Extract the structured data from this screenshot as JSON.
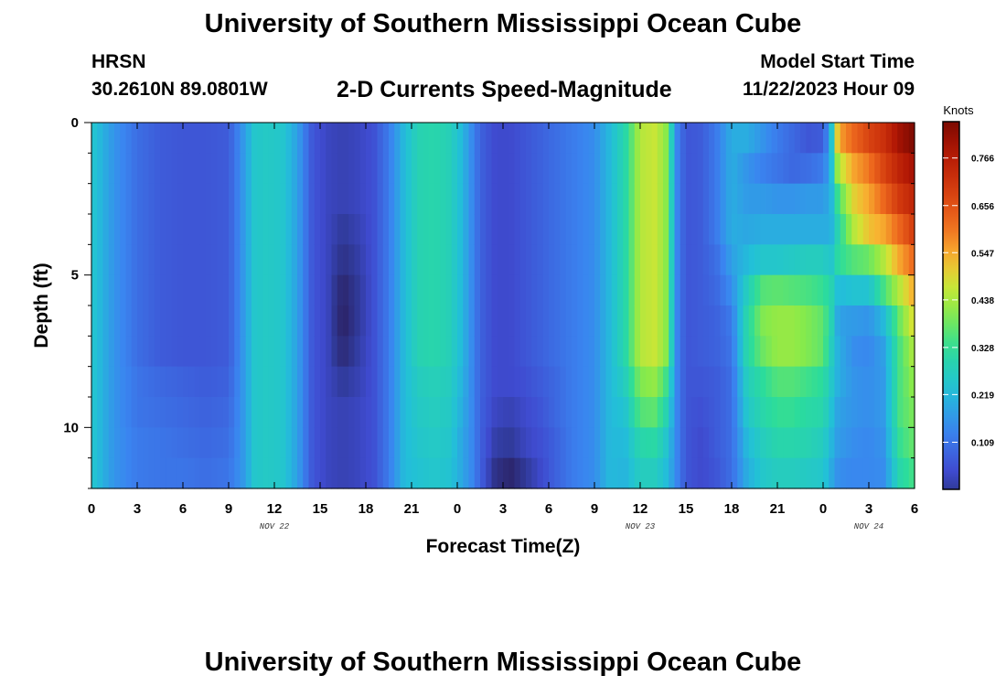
{
  "header": {
    "title": "University of Southern Mississippi Ocean Cube",
    "station": "HRSN",
    "coords": "30.2610N  89.0801W",
    "subtitle": "2-D Currents Speed-Magnitude",
    "model_start_label": "Model Start Time",
    "model_start_value": "11/22/2023 Hour 09"
  },
  "footer": {
    "title": "University of Southern Mississippi Ocean Cube"
  },
  "chart_data": {
    "type": "heatmap",
    "title": "2-D Currents Speed-Magnitude",
    "xlabel": "Forecast Time(Z)",
    "ylabel": "Depth (ft)",
    "colorbar_label": "Knots",
    "colorbar_ticks": [
      "0.109",
      "0.219",
      "0.328",
      "0.438",
      "0.547",
      "0.656",
      "0.766"
    ],
    "colorbar_tick_values": [
      0.109,
      0.219,
      0.328,
      0.438,
      0.547,
      0.656,
      0.766
    ],
    "color_range": [
      0,
      0.85
    ],
    "xlim": [
      0,
      54
    ],
    "ylim": [
      0,
      12
    ],
    "x_ticks": [
      "0",
      "3",
      "6",
      "9",
      "12",
      "15",
      "18",
      "21",
      "0",
      "3",
      "6",
      "9",
      "12",
      "15",
      "18",
      "21",
      "0",
      "3",
      "6"
    ],
    "y_ticks": [
      "0",
      "5",
      "10"
    ],
    "y_tick_values": [
      0,
      5,
      10
    ],
    "day_labels": [
      {
        "label": "NOV 22",
        "hour": 12
      },
      {
        "label": "NOV 23",
        "hour": 36
      },
      {
        "label": "NOV 24",
        "hour": 51
      }
    ],
    "depth_levels_ft": [
      0.5,
      1.5,
      2.5,
      3.5,
      4.5,
      5.5,
      6.5,
      7.5,
      8.5,
      9.5,
      10.5,
      11.5
    ],
    "profile_hours": [
      0,
      1.5,
      3,
      4.5,
      6,
      7.5,
      9,
      10,
      10.7,
      11.5,
      12.5,
      13.5,
      14.5,
      15.5,
      16.5,
      17.5,
      18.5,
      19.5,
      20.5,
      21.5,
      22.5,
      23.5,
      24.3,
      25,
      25.5,
      26.5,
      27.5,
      28.5,
      29.5,
      30.5,
      31.5,
      33,
      34,
      35,
      36,
      37,
      37.8,
      38.3,
      39,
      40,
      41,
      42,
      43,
      44,
      45,
      46,
      47,
      48,
      48.5,
      49,
      50,
      51,
      52,
      53,
      54
    ],
    "profiles": [
      [
        0.25,
        0.25,
        0.25,
        0.25,
        0.25,
        0.25,
        0.25,
        0.25,
        0.25,
        0.25,
        0.25,
        0.25
      ],
      [
        0.16,
        0.16,
        0.16,
        0.16,
        0.16,
        0.16,
        0.16,
        0.16,
        0.16,
        0.16,
        0.16,
        0.16
      ],
      [
        0.1,
        0.1,
        0.1,
        0.1,
        0.1,
        0.1,
        0.1,
        0.1,
        0.11,
        0.11,
        0.12,
        0.12
      ],
      [
        0.07,
        0.07,
        0.07,
        0.07,
        0.07,
        0.07,
        0.07,
        0.07,
        0.09,
        0.1,
        0.11,
        0.11
      ],
      [
        0.06,
        0.06,
        0.06,
        0.06,
        0.06,
        0.06,
        0.06,
        0.06,
        0.08,
        0.09,
        0.1,
        0.11
      ],
      [
        0.06,
        0.06,
        0.06,
        0.06,
        0.06,
        0.06,
        0.06,
        0.06,
        0.07,
        0.08,
        0.09,
        0.1
      ],
      [
        0.07,
        0.07,
        0.07,
        0.07,
        0.07,
        0.07,
        0.07,
        0.07,
        0.08,
        0.09,
        0.1,
        0.11
      ],
      [
        0.17,
        0.17,
        0.17,
        0.17,
        0.17,
        0.17,
        0.17,
        0.17,
        0.17,
        0.17,
        0.17,
        0.17
      ],
      [
        0.25,
        0.25,
        0.25,
        0.25,
        0.25,
        0.25,
        0.25,
        0.25,
        0.25,
        0.25,
        0.25,
        0.25
      ],
      [
        0.26,
        0.26,
        0.26,
        0.26,
        0.26,
        0.26,
        0.26,
        0.26,
        0.26,
        0.26,
        0.26,
        0.26
      ],
      [
        0.25,
        0.25,
        0.25,
        0.25,
        0.25,
        0.25,
        0.25,
        0.25,
        0.25,
        0.25,
        0.25,
        0.25
      ],
      [
        0.18,
        0.18,
        0.18,
        0.18,
        0.18,
        0.18,
        0.18,
        0.18,
        0.18,
        0.18,
        0.18,
        0.18
      ],
      [
        0.06,
        0.06,
        0.06,
        0.06,
        0.06,
        0.06,
        0.06,
        0.06,
        0.06,
        0.06,
        0.06,
        0.06
      ],
      [
        0.03,
        0.03,
        0.03,
        0.03,
        0.03,
        0.03,
        0.03,
        0.03,
        0.03,
        0.03,
        0.03,
        0.03
      ],
      [
        0.02,
        0.02,
        0.02,
        0.0,
        -0.02,
        -0.05,
        -0.06,
        -0.04,
        0.0,
        0.02,
        0.02,
        0.02
      ],
      [
        0.03,
        0.03,
        0.03,
        0.02,
        0.01,
        0.0,
        0.0,
        0.01,
        0.02,
        0.03,
        0.03,
        0.03
      ],
      [
        0.05,
        0.05,
        0.05,
        0.05,
        0.05,
        0.05,
        0.05,
        0.05,
        0.05,
        0.05,
        0.05,
        0.05
      ],
      [
        0.12,
        0.12,
        0.12,
        0.12,
        0.12,
        0.12,
        0.12,
        0.12,
        0.12,
        0.12,
        0.12,
        0.12
      ],
      [
        0.22,
        0.22,
        0.22,
        0.22,
        0.22,
        0.22,
        0.22,
        0.22,
        0.22,
        0.22,
        0.22,
        0.22
      ],
      [
        0.29,
        0.29,
        0.29,
        0.29,
        0.29,
        0.29,
        0.29,
        0.29,
        0.27,
        0.26,
        0.25,
        0.24
      ],
      [
        0.3,
        0.3,
        0.3,
        0.3,
        0.3,
        0.3,
        0.3,
        0.3,
        0.28,
        0.27,
        0.26,
        0.25
      ],
      [
        0.28,
        0.28,
        0.28,
        0.28,
        0.28,
        0.28,
        0.28,
        0.28,
        0.27,
        0.26,
        0.25,
        0.24
      ],
      [
        0.22,
        0.22,
        0.22,
        0.22,
        0.22,
        0.22,
        0.22,
        0.22,
        0.21,
        0.2,
        0.19,
        0.19
      ],
      [
        0.14,
        0.14,
        0.14,
        0.14,
        0.14,
        0.14,
        0.14,
        0.14,
        0.14,
        0.14,
        0.14,
        0.14
      ],
      [
        0.08,
        0.08,
        0.08,
        0.08,
        0.08,
        0.08,
        0.08,
        0.08,
        0.08,
        0.08,
        0.08,
        0.08
      ],
      [
        0.04,
        0.04,
        0.04,
        0.04,
        0.04,
        0.04,
        0.04,
        0.04,
        0.04,
        0.03,
        0.01,
        -0.02
      ],
      [
        0.04,
        0.04,
        0.04,
        0.04,
        0.04,
        0.04,
        0.04,
        0.04,
        0.04,
        0.02,
        0.0,
        -0.05
      ],
      [
        0.06,
        0.06,
        0.06,
        0.06,
        0.06,
        0.06,
        0.06,
        0.06,
        0.05,
        0.04,
        0.03,
        0.0
      ],
      [
        0.08,
        0.08,
        0.08,
        0.08,
        0.08,
        0.08,
        0.08,
        0.08,
        0.07,
        0.06,
        0.05,
        0.04
      ],
      [
        0.1,
        0.1,
        0.1,
        0.1,
        0.1,
        0.1,
        0.1,
        0.1,
        0.09,
        0.09,
        0.08,
        0.08
      ],
      [
        0.12,
        0.12,
        0.12,
        0.12,
        0.12,
        0.12,
        0.12,
        0.12,
        0.12,
        0.12,
        0.12,
        0.12
      ],
      [
        0.15,
        0.15,
        0.15,
        0.15,
        0.15,
        0.15,
        0.15,
        0.15,
        0.15,
        0.15,
        0.15,
        0.15
      ],
      [
        0.22,
        0.22,
        0.22,
        0.22,
        0.22,
        0.22,
        0.22,
        0.22,
        0.22,
        0.22,
        0.22,
        0.22
      ],
      [
        0.3,
        0.3,
        0.3,
        0.3,
        0.3,
        0.3,
        0.3,
        0.3,
        0.27,
        0.24,
        0.22,
        0.21
      ],
      [
        0.45,
        0.45,
        0.45,
        0.45,
        0.45,
        0.45,
        0.45,
        0.45,
        0.4,
        0.36,
        0.3,
        0.27
      ],
      [
        0.47,
        0.47,
        0.47,
        0.47,
        0.47,
        0.47,
        0.47,
        0.47,
        0.42,
        0.37,
        0.31,
        0.27
      ],
      [
        0.4,
        0.4,
        0.4,
        0.4,
        0.4,
        0.4,
        0.4,
        0.4,
        0.33,
        0.28,
        0.24,
        0.22
      ],
      [
        0.15,
        0.15,
        0.15,
        0.15,
        0.15,
        0.15,
        0.15,
        0.15,
        0.15,
        0.15,
        0.15,
        0.15
      ],
      [
        0.06,
        0.06,
        0.06,
        0.06,
        0.06,
        0.06,
        0.06,
        0.06,
        0.06,
        0.06,
        0.06,
        0.06
      ],
      [
        0.07,
        0.07,
        0.07,
        0.07,
        0.07,
        0.07,
        0.07,
        0.07,
        0.06,
        0.05,
        0.04,
        0.04
      ],
      [
        0.12,
        0.12,
        0.12,
        0.12,
        0.1,
        0.09,
        0.08,
        0.08,
        0.07,
        0.07,
        0.07,
        0.06
      ],
      [
        0.2,
        0.2,
        0.2,
        0.2,
        0.18,
        0.15,
        0.12,
        0.11,
        0.1,
        0.1,
        0.1,
        0.1
      ],
      [
        0.2,
        0.16,
        0.17,
        0.19,
        0.22,
        0.27,
        0.3,
        0.3,
        0.27,
        0.25,
        0.22,
        0.2
      ],
      [
        0.16,
        0.13,
        0.17,
        0.2,
        0.25,
        0.36,
        0.4,
        0.38,
        0.32,
        0.3,
        0.27,
        0.25
      ],
      [
        0.12,
        0.11,
        0.16,
        0.2,
        0.25,
        0.37,
        0.42,
        0.42,
        0.36,
        0.33,
        0.3,
        0.27
      ],
      [
        0.09,
        0.09,
        0.16,
        0.2,
        0.26,
        0.36,
        0.42,
        0.42,
        0.36,
        0.33,
        0.3,
        0.27
      ],
      [
        0.06,
        0.1,
        0.17,
        0.2,
        0.27,
        0.35,
        0.4,
        0.4,
        0.34,
        0.31,
        0.29,
        0.26
      ],
      [
        0.07,
        0.12,
        0.17,
        0.2,
        0.27,
        0.33,
        0.37,
        0.37,
        0.32,
        0.3,
        0.27,
        0.25
      ],
      [
        0.2,
        0.2,
        0.2,
        0.2,
        0.24,
        0.3,
        0.3,
        0.28,
        0.26,
        0.24,
        0.22,
        0.2
      ],
      [
        0.55,
        0.45,
        0.35,
        0.3,
        0.32,
        0.22,
        0.18,
        0.2,
        0.2,
        0.18,
        0.17,
        0.15
      ],
      [
        0.62,
        0.55,
        0.5,
        0.45,
        0.36,
        0.24,
        0.17,
        0.15,
        0.16,
        0.16,
        0.15,
        0.14
      ],
      [
        0.68,
        0.6,
        0.55,
        0.52,
        0.38,
        0.24,
        0.16,
        0.14,
        0.15,
        0.15,
        0.14,
        0.14
      ],
      [
        0.72,
        0.68,
        0.62,
        0.55,
        0.45,
        0.35,
        0.22,
        0.18,
        0.17,
        0.17,
        0.16,
        0.15
      ],
      [
        0.8,
        0.75,
        0.7,
        0.62,
        0.55,
        0.45,
        0.38,
        0.35,
        0.35,
        0.35,
        0.33,
        0.3
      ],
      [
        0.85,
        0.8,
        0.75,
        0.7,
        0.62,
        0.55,
        0.5,
        0.45,
        0.42,
        0.4,
        0.38,
        0.35
      ]
    ]
  }
}
